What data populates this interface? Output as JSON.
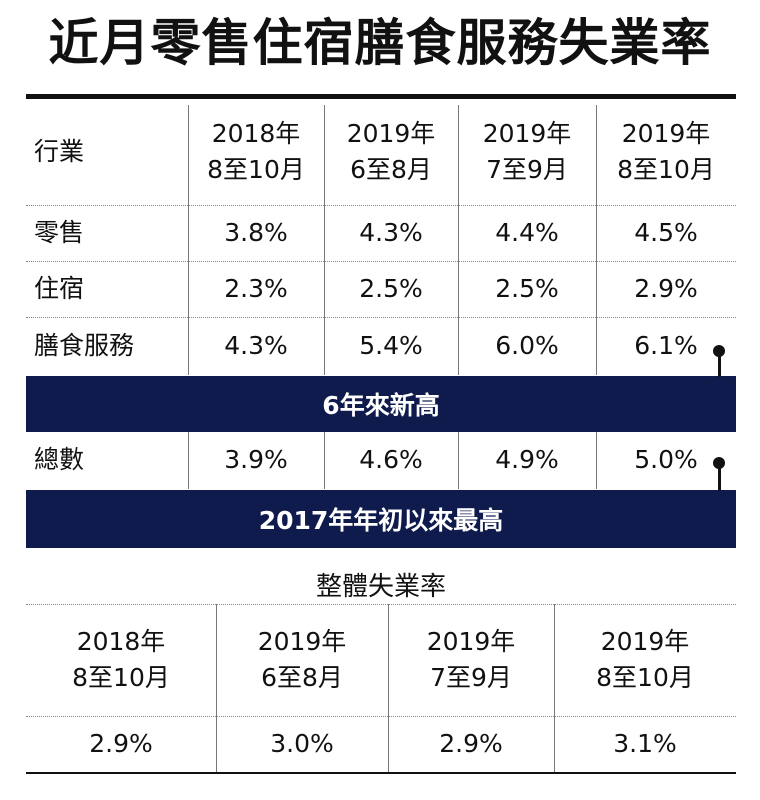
{
  "title": "近月零售住宿膳食服務失業率",
  "table": {
    "header": {
      "industry": "行業",
      "periods": [
        {
          "year": "2018年",
          "months": "8至10月"
        },
        {
          "year": "2019年",
          "months": "6至8月"
        },
        {
          "year": "2019年",
          "months": "7至9月"
        },
        {
          "year": "2019年",
          "months": "8至10月"
        }
      ]
    },
    "rows": [
      {
        "industry": "零售",
        "values": [
          "3.8%",
          "4.3%",
          "4.4%",
          "4.5%"
        ]
      },
      {
        "industry": "住宿",
        "values": [
          "2.3%",
          "2.5%",
          "2.5%",
          "2.9%"
        ]
      },
      {
        "industry": "膳食服務",
        "values": [
          "4.3%",
          "5.4%",
          "6.0%",
          "6.1%"
        ]
      }
    ],
    "banner_1": "6年來新高",
    "total": {
      "industry": "總數",
      "values": [
        "3.9%",
        "4.6%",
        "4.9%",
        "5.0%"
      ]
    },
    "banner_2": "2017年年初以來最高"
  },
  "overall": {
    "title": "整體失業率",
    "periods": [
      {
        "year": "2018年",
        "months": "8至10月"
      },
      {
        "year": "2019年",
        "months": "6至8月"
      },
      {
        "year": "2019年",
        "months": "7至9月"
      },
      {
        "year": "2019年",
        "months": "8至10月"
      }
    ],
    "values": [
      "2.9%",
      "3.0%",
      "2.9%",
      "3.1%"
    ]
  },
  "colors": {
    "banner": "#0f1b4d",
    "text": "#111111"
  }
}
